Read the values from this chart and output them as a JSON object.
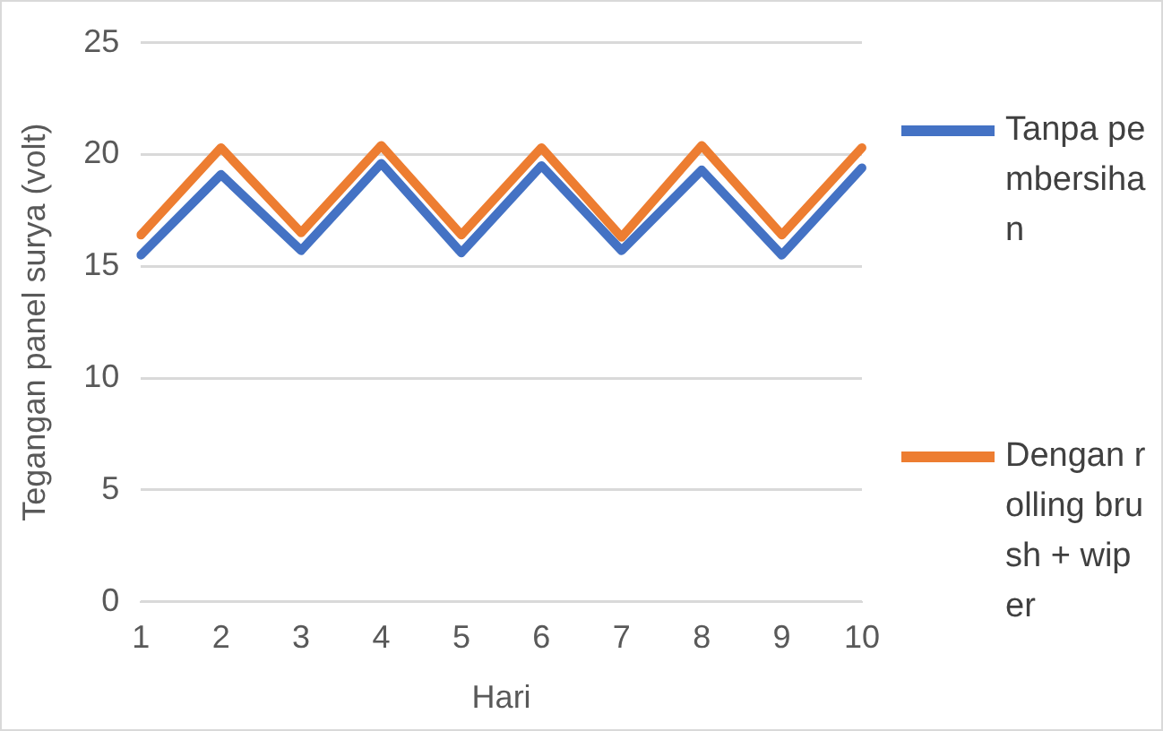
{
  "chart_data": {
    "type": "line",
    "xlabel": "Hari",
    "ylabel": "Tegangan panel surya (volt)",
    "categories": [
      "1",
      "2",
      "3",
      "4",
      "5",
      "6",
      "7",
      "8",
      "9",
      "10"
    ],
    "series": [
      {
        "name": "Tanpa pembersihan",
        "color": "#4472c4",
        "values": [
          15.5,
          19.1,
          15.7,
          19.6,
          15.6,
          19.5,
          15.7,
          19.3,
          15.5,
          19.4
        ]
      },
      {
        "name": "Dengan rolling brush + wiper",
        "color": "#ed7d31",
        "values": [
          16.4,
          20.3,
          16.5,
          20.4,
          16.4,
          20.3,
          16.3,
          20.4,
          16.4,
          20.3
        ]
      }
    ],
    "ylim": [
      0,
      25
    ],
    "yticks": [
      0,
      5,
      10,
      15,
      20,
      25
    ],
    "grid": "y",
    "legend": "right",
    "marker": "none",
    "line_style": "solid"
  }
}
